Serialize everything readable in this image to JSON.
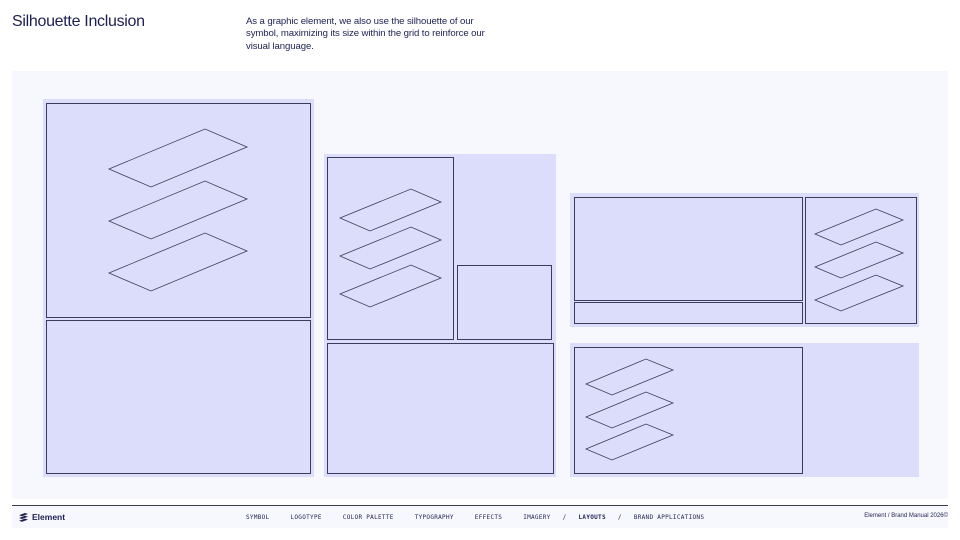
{
  "header": {
    "title": "Silhouette Inclusion",
    "description": "As a graphic element, we also use the silhouette of our symbol, maximizing its size within the grid to reinforce our visual language."
  },
  "footer": {
    "brand": "Element",
    "nav": [
      {
        "label": "SYMBOL",
        "active": false
      },
      {
        "label": "LOGOTYPE",
        "active": false
      },
      {
        "label": "COLOR PALETTE",
        "active": false
      },
      {
        "label": "TYPOGRAPHY",
        "active": false
      },
      {
        "label": "EFFECTS",
        "active": false
      },
      {
        "label": "IMAGERY",
        "active": false
      },
      {
        "label": "/",
        "separator": true
      },
      {
        "label": "LAYOUTS",
        "active": true
      },
      {
        "label": "/",
        "separator": true
      },
      {
        "label": "BRAND APPLICATIONS",
        "active": false
      }
    ],
    "meta": "Element / Brand Manual 2026©"
  },
  "colors": {
    "ink": "#1c2050",
    "panel": "#dcdcfb",
    "stage": "#f7f8fd",
    "stroke": "#3a3c5e"
  }
}
